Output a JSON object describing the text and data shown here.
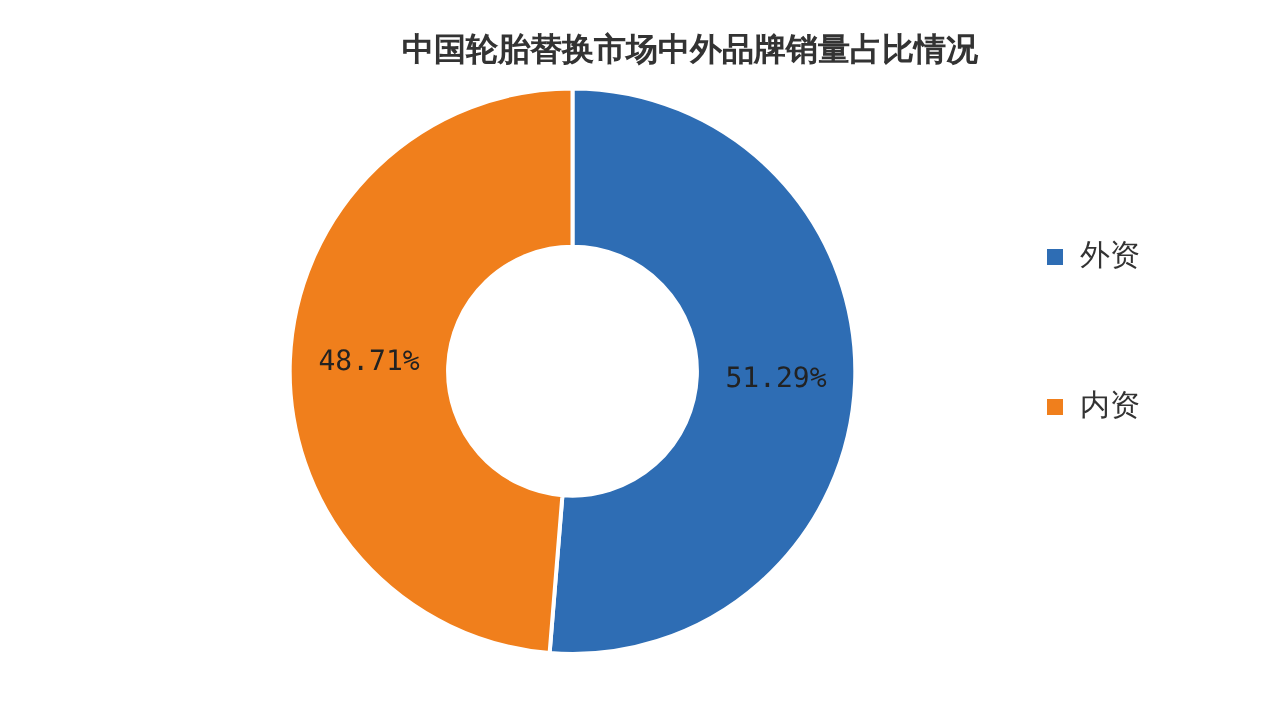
{
  "chart_data": {
    "type": "donut",
    "title": "中国轮胎替换市场中外品牌销量占比情况",
    "categories": [
      "外资",
      "内资"
    ],
    "values": [
      51.29,
      48.71
    ],
    "colors": [
      "#2e6db4",
      "#f07f1c"
    ],
    "value_labels": [
      "51.29%",
      "48.71%"
    ],
    "legend": "right"
  }
}
